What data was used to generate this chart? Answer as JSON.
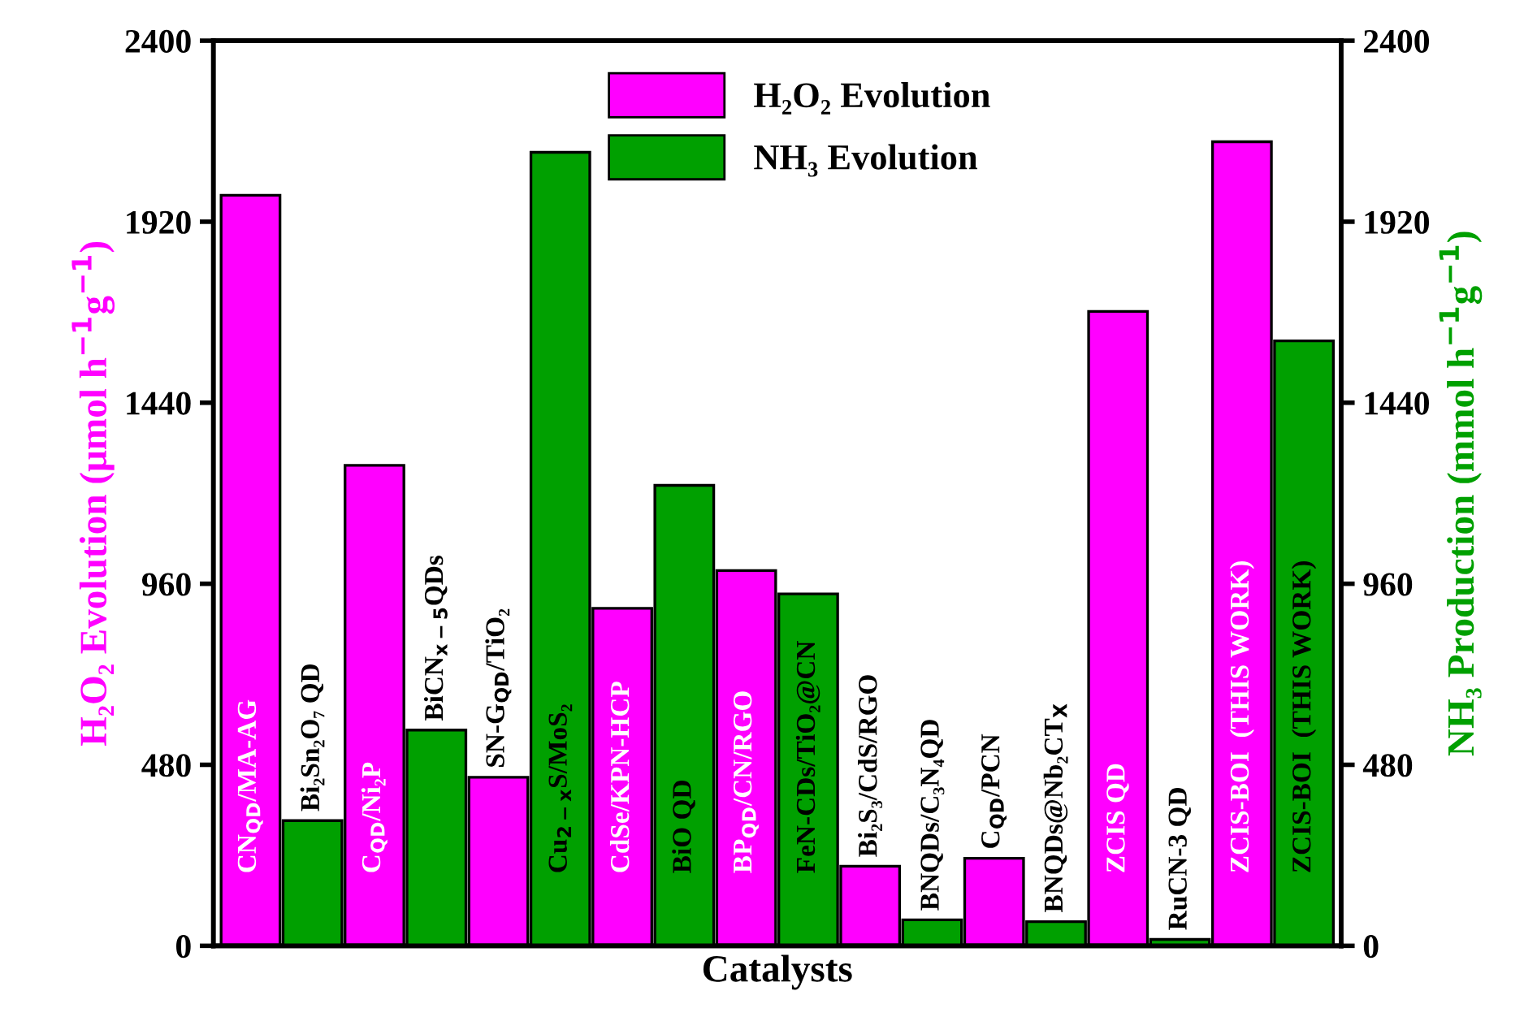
{
  "chart_data": {
    "type": "bar",
    "xlabel": "Catalysts",
    "ylabel": "H₂O₂ Evolution (μmol h$^{−1}$g$^{−1}$)",
    "y2label": "NH₃ Production (mmol h$^{−1}$g$^{−1}$)",
    "categories": [
      "CN$_{QD}$/MA-AG",
      "Bi₂Sn₂O₇ QD",
      "C$_{QD}$/Ni₂P",
      "BiCN$_{x−5}$QDs",
      "SN-G$_{QD}$/TiO₂",
      "Cu$_{2−x}$S/MoS₂",
      "CdSe/KPN-HCP",
      "BiO QD",
      "BP$_{QD}$/CN/RGO",
      "FeN-CDs/TiO₂@CN",
      "Bi₂S₃/CdS/RGO",
      "BNQDs/C₃N₄QD",
      "C$_{QD}$/PCN",
      "BNQDs@Nb₂CT$_{X}$",
      "ZCIS QD",
      "RuCN-3 QD",
      "ZCIS-BOI  (THIS WORK)",
      "ZCIS-BOI  (THIS WORK)"
    ],
    "series": [
      {
        "name": "H₂O₂ Evolution",
        "color": "#ff00ff",
        "values": [
          1990,
          null,
          1274,
          null,
          447,
          null,
          895,
          null,
          995,
          null,
          211,
          null,
          232,
          null,
          1682,
          null,
          2132,
          null
        ]
      },
      {
        "name": "NH₃ Evolution",
        "color": "#00a000",
        "axis": "y2",
        "values": [
          null,
          332,
          null,
          572,
          null,
          2104,
          null,
          1221,
          null,
          933,
          null,
          69,
          null,
          64,
          null,
          17,
          null,
          1604
        ]
      }
    ],
    "ylim": [
      0,
      2400
    ],
    "yticks": [
      0,
      480,
      960,
      1440,
      1920,
      2400
    ],
    "y2lim": [
      0,
      2400
    ],
    "y2ticks": [
      0,
      480,
      960,
      1440,
      1920,
      2400
    ],
    "legend": "top",
    "grid": false
  }
}
